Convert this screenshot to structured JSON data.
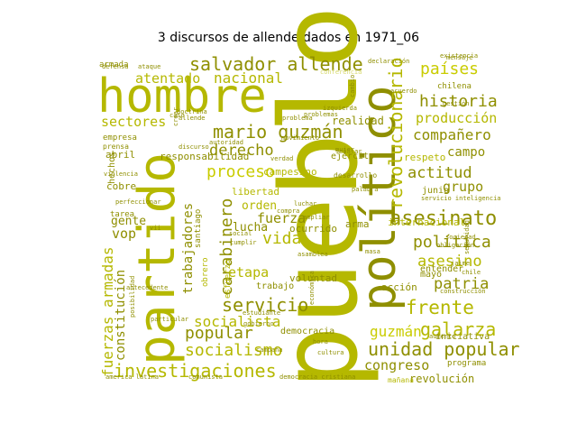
{
  "title": "3 discursos de allende dados en 1971_06",
  "palette": {
    "gold": "#b5b800",
    "olive": "#8f8f00",
    "bright": "#c9cc00",
    "dark": "#6e6e00",
    "light": "#d6d86a"
  },
  "words": [
    {
      "text": "pueblo",
      "weight": 100,
      "shade": "gold",
      "v": true
    },
    {
      "text": "hombre",
      "weight": 78,
      "shade": "gold",
      "v": false
    },
    {
      "text": "partido",
      "weight": 70,
      "shade": "gold",
      "v": true
    },
    {
      "text": "político",
      "weight": 68,
      "shade": "olive",
      "v": true
    },
    {
      "text": "revolucionario",
      "weight": 34,
      "shade": "gold",
      "v": true
    },
    {
      "text": "salvador allende",
      "weight": 30,
      "shade": "olive",
      "v": false
    },
    {
      "text": "mario guzmán",
      "weight": 28,
      "shade": "olive",
      "v": false
    },
    {
      "text": "países",
      "weight": 26,
      "shade": "bright",
      "v": false
    },
    {
      "text": "historia",
      "weight": 25,
      "shade": "olive",
      "v": false
    },
    {
      "text": "asesinato",
      "weight": 30,
      "shade": "olive",
      "v": false
    },
    {
      "text": "galarza",
      "weight": 26,
      "shade": "gold",
      "v": false
    },
    {
      "text": "frente",
      "weight": 27,
      "shade": "gold",
      "v": false
    },
    {
      "text": "unidad popular",
      "weight": 26,
      "shade": "olive",
      "v": false
    },
    {
      "text": "investigaciones",
      "weight": 26,
      "shade": "gold",
      "v": false
    },
    {
      "text": "fuerzas armadas",
      "weight": 22,
      "shade": "gold",
      "v": true
    },
    {
      "text": "servicio",
      "weight": 24,
      "shade": "olive",
      "v": false
    },
    {
      "text": "socialismo",
      "weight": 23,
      "shade": "gold",
      "v": false
    },
    {
      "text": "popular",
      "weight": 22,
      "shade": "olive",
      "v": false
    },
    {
      "text": "socialista",
      "weight": 21,
      "shade": "gold",
      "v": false
    },
    {
      "text": "carabinero",
      "weight": 22,
      "shade": "olive",
      "v": true
    },
    {
      "text": "proceso",
      "weight": 22,
      "shade": "bright",
      "v": false
    },
    {
      "text": "derecho",
      "weight": 22,
      "shade": "olive",
      "v": false
    },
    {
      "text": "vida",
      "weight": 22,
      "shade": "gold",
      "v": false
    },
    {
      "text": "política",
      "weight": 22,
      "shade": "olive",
      "v": false
    },
    {
      "text": "asesino",
      "weight": 21,
      "shade": "gold",
      "v": false
    },
    {
      "text": "patria",
      "weight": 21,
      "shade": "olive",
      "v": false
    },
    {
      "text": "actitud",
      "weight": 21,
      "shade": "olive",
      "v": false
    },
    {
      "text": "compañero",
      "weight": 20,
      "shade": "olive",
      "v": false
    },
    {
      "text": "producción",
      "weight": 20,
      "shade": "gold",
      "v": false
    },
    {
      "text": "nacional",
      "weight": 20,
      "shade": "gold",
      "v": false
    },
    {
      "text": "atentado",
      "weight": 18,
      "shade": "gold",
      "v": false
    },
    {
      "text": "sectores",
      "weight": 18,
      "shade": "gold",
      "v": false
    },
    {
      "text": "constitución",
      "weight": 18,
      "shade": "olive",
      "v": true
    },
    {
      "text": "trabajadores",
      "weight": 18,
      "shade": "olive",
      "v": true
    },
    {
      "text": "guzmán",
      "weight": 20,
      "shade": "bright",
      "v": false
    },
    {
      "text": "congreso",
      "weight": 19,
      "shade": "olive",
      "v": false
    },
    {
      "text": "grupo",
      "weight": 19,
      "shade": "olive",
      "v": false
    },
    {
      "text": "campo",
      "weight": 18,
      "shade": "olive",
      "v": false
    },
    {
      "text": "etapa",
      "weight": 18,
      "shade": "gold",
      "v": false
    },
    {
      "text": "fuerza",
      "weight": 18,
      "shade": "olive",
      "v": false
    },
    {
      "text": "lucha",
      "weight": 16,
      "shade": "olive",
      "v": false
    },
    {
      "text": "orden",
      "weight": 16,
      "shade": "gold",
      "v": false
    },
    {
      "text": "vop",
      "weight": 17,
      "shade": "olive",
      "v": false
    },
    {
      "text": "gente",
      "weight": 16,
      "shade": "olive",
      "v": false
    },
    {
      "text": "libertad",
      "weight": 14,
      "shade": "gold",
      "v": false
    },
    {
      "text": "revolución",
      "weight": 14,
      "shade": "olive",
      "v": false
    },
    {
      "text": "realidad",
      "weight": 14,
      "shade": "olive",
      "v": false
    },
    {
      "text": "responsabilidad",
      "weight": 13,
      "shade": "olive",
      "v": false
    },
    {
      "text": "campesino",
      "weight": 13,
      "shade": "gold",
      "v": false
    },
    {
      "text": "ocurrido",
      "weight": 13,
      "shade": "olive",
      "v": false
    },
    {
      "text": "acción",
      "weight": 13,
      "shade": "olive",
      "v": false
    },
    {
      "text": "internacional",
      "weight": 12,
      "shade": "gold",
      "v": false
    },
    {
      "text": "respeto",
      "weight": 12,
      "shade": "gold",
      "v": false
    },
    {
      "text": "hechos",
      "weight": 12,
      "shade": "olive",
      "v": true
    },
    {
      "text": "abril",
      "weight": 13,
      "shade": "olive",
      "v": false
    },
    {
      "text": "cobre",
      "weight": 13,
      "shade": "olive",
      "v": false
    },
    {
      "text": "ejército",
      "weight": 12,
      "shade": "olive",
      "v": false
    },
    {
      "text": "arma",
      "weight": 12,
      "shade": "olive",
      "v": false
    },
    {
      "text": "voluntad",
      "weight": 12,
      "shade": "olive",
      "v": false
    },
    {
      "text": "trabajo",
      "weight": 12,
      "shade": "olive",
      "v": false
    },
    {
      "text": "democracia",
      "weight": 11,
      "shade": "olive",
      "v": false
    },
    {
      "text": "junio",
      "weight": 11,
      "shade": "olive",
      "v": false
    },
    {
      "text": "mayo",
      "weight": 11,
      "shade": "olive",
      "v": false
    },
    {
      "text": "entender",
      "weight": 11,
      "shade": "olive",
      "v": false
    },
    {
      "text": "iniciativa",
      "weight": 11,
      "shade": "olive",
      "v": false
    },
    {
      "text": "programa",
      "weight": 10,
      "shade": "olive",
      "v": false
    },
    {
      "text": "empresa",
      "weight": 10,
      "shade": "olive",
      "v": false
    },
    {
      "text": "tarea",
      "weight": 10,
      "shade": "olive",
      "v": false
    },
    {
      "text": "chilena",
      "weight": 10,
      "shade": "olive",
      "v": false
    },
    {
      "text": "armada",
      "weight": 10,
      "shade": "olive",
      "v": false
    },
    {
      "text": "santiago",
      "weight": 10,
      "shade": "olive",
      "v": true
    },
    {
      "text": "obrero",
      "weight": 10,
      "shade": "gold",
      "v": true
    },
    {
      "text": "esfuerzo",
      "weight": 10,
      "shade": "gold",
      "v": true
    },
    {
      "text": "prensa",
      "weight": 9,
      "shade": "olive",
      "v": false
    },
    {
      "text": "mañana",
      "weight": 9,
      "shade": "gold",
      "v": false
    },
    {
      "text": "desarrollo",
      "weight": 9,
      "shade": "olive",
      "v": false
    },
    {
      "text": "movimiento",
      "weight": 8,
      "shade": "olive",
      "v": false
    },
    {
      "text": "conferencia",
      "weight": 8,
      "shade": "light",
      "v": false
    },
    {
      "text": "problema",
      "weight": 8,
      "shade": "olive",
      "v": false
    },
    {
      "text": "palabra",
      "weight": 8,
      "shade": "olive",
      "v": false
    },
    {
      "text": "servicio inteligencia",
      "weight": 8,
      "shade": "olive",
      "v": false
    },
    {
      "text": "ampliar",
      "weight": 8,
      "shade": "olive",
      "v": false
    },
    {
      "text": "existencia",
      "weight": 8,
      "shade": "olive",
      "v": false
    },
    {
      "text": "violencia",
      "weight": 8,
      "shade": "olive",
      "v": false
    },
    {
      "text": "chile",
      "weight": 8,
      "shade": "olive",
      "v": false
    },
    {
      "text": "aumento",
      "weight": 8,
      "shade": "olive",
      "v": false
    },
    {
      "text": "económica",
      "weight": 8,
      "shade": "olive",
      "v": true
    },
    {
      "text": "estudiante",
      "weight": 8,
      "shade": "olive",
      "v": false
    },
    {
      "text": "construcción",
      "weight": 8,
      "shade": "olive",
      "v": false
    },
    {
      "text": "gobierno",
      "weight": 8,
      "shade": "olive",
      "v": false
    },
    {
      "text": "jaime",
      "weight": 8,
      "shade": "olive",
      "v": false
    },
    {
      "text": "cambio",
      "weight": 8,
      "shade": "olive",
      "v": true
    },
    {
      "text": "allende",
      "weight": 7,
      "shade": "olive",
      "v": false
    },
    {
      "text": "defensa",
      "weight": 7,
      "shade": "olive",
      "v": false
    },
    {
      "text": "discurso",
      "weight": 7,
      "shade": "olive",
      "v": false
    },
    {
      "text": "mujer",
      "weight": 7,
      "shade": "olive",
      "v": false
    },
    {
      "text": "señalar",
      "weight": 7,
      "shade": "olive",
      "v": false
    },
    {
      "text": "crear",
      "weight": 7,
      "shade": "olive",
      "v": true
    },
    {
      "text": "verdad",
      "weight": 7,
      "shade": "olive",
      "v": false
    },
    {
      "text": "doctrina",
      "weight": 7,
      "shade": "olive",
      "v": false
    },
    {
      "text": "seguridad",
      "weight": 7,
      "shade": "olive",
      "v": true
    },
    {
      "text": "posibilidad",
      "weight": 7,
      "shade": "olive",
      "v": true
    },
    {
      "text": "america latina",
      "weight": 7,
      "shade": "olive",
      "v": false
    },
    {
      "text": "comunista",
      "weight": 7,
      "shade": "olive",
      "v": false
    },
    {
      "text": "democracia cristiana",
      "weight": 7,
      "shade": "olive",
      "v": false
    },
    {
      "text": "campaña",
      "weight": 7,
      "shade": "olive",
      "v": false
    },
    {
      "text": "antecedente",
      "weight": 7,
      "shade": "olive",
      "v": false
    },
    {
      "text": "obligación",
      "weight": 7,
      "shade": "olive",
      "v": false
    },
    {
      "text": "ataque",
      "weight": 7,
      "shade": "olive",
      "v": false
    },
    {
      "text": "autoridad",
      "weight": 7,
      "shade": "olive",
      "v": false
    },
    {
      "text": "perfeccionar",
      "weight": 7,
      "shade": "olive",
      "v": false
    },
    {
      "text": "particular",
      "weight": 7,
      "shade": "olive",
      "v": false
    },
    {
      "text": "social",
      "weight": 7,
      "shade": "olive",
      "v": false
    },
    {
      "text": "cumplir",
      "weight": 7,
      "shade": "olive",
      "v": false
    },
    {
      "text": "mensaje",
      "weight": 7,
      "shade": "olive",
      "v": false
    },
    {
      "text": "caso",
      "weight": 7,
      "shade": "olive",
      "v": false
    },
    {
      "text": "compra",
      "weight": 7,
      "shade": "olive",
      "v": false
    },
    {
      "text": "hora",
      "weight": 7,
      "shade": "olive",
      "v": false
    },
    {
      "text": "vii",
      "weight": 7,
      "shade": "olive",
      "v": false
    },
    {
      "text": "acuerdo",
      "weight": 7,
      "shade": "olive",
      "v": false
    },
    {
      "text": "asamblea",
      "weight": 7,
      "shade": "olive",
      "v": false
    },
    {
      "text": "sociedad",
      "weight": 7,
      "shade": "olive",
      "v": false
    },
    {
      "text": "declaración",
      "weight": 7,
      "shade": "olive",
      "v": false
    },
    {
      "text": "cultura",
      "weight": 7,
      "shade": "olive",
      "v": false
    },
    {
      "text": "gestión",
      "weight": 7,
      "shade": "olive",
      "v": false
    },
    {
      "text": "izquierda",
      "weight": 7,
      "shade": "olive",
      "v": false
    },
    {
      "text": "problemas",
      "weight": 7,
      "shade": "olive",
      "v": false
    },
    {
      "text": "masa",
      "weight": 7,
      "shade": "olive",
      "v": false
    },
    {
      "text": "luchar",
      "weight": 7,
      "shade": "olive",
      "v": false
    }
  ]
}
